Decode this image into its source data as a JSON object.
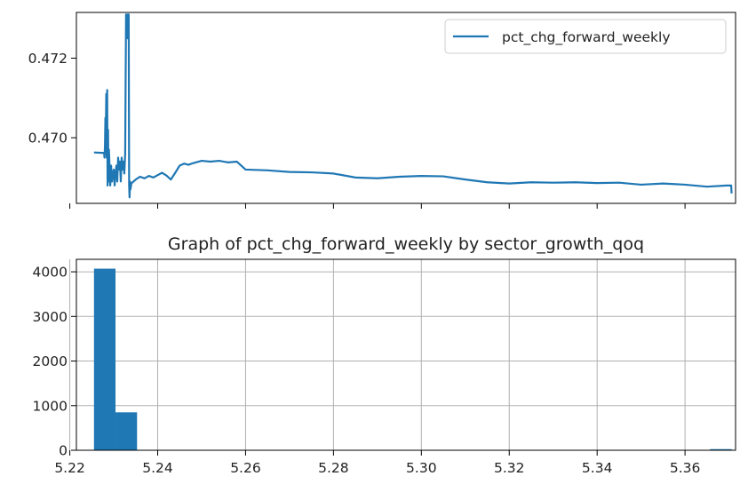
{
  "chart_data": [
    {
      "type": "line",
      "title": "",
      "xlabel": "",
      "ylabel": "",
      "x_tick_labels_shown": false,
      "x_range": [
        5.2215,
        5.3715
      ],
      "ylim": [
        0.46835,
        0.47315
      ],
      "y_ticks": [
        0.47,
        0.472
      ],
      "y_tick_labels": [
        "0.470",
        "0.472"
      ],
      "grid": false,
      "legend": {
        "placement": "upper right",
        "entries": [
          "pct_chg_forward_weekly"
        ]
      },
      "series": [
        {
          "name": "pct_chg_forward_weekly",
          "color": "#1f77b4",
          "x": [
            5.2255,
            5.2274,
            5.2278,
            5.2279,
            5.228,
            5.2281,
            5.2282,
            5.2283,
            5.2284,
            5.2285,
            5.2286,
            5.2287,
            5.2288,
            5.2289,
            5.229,
            5.2291,
            5.2292,
            5.2294,
            5.2296,
            5.2298,
            5.23,
            5.2302,
            5.2304,
            5.2306,
            5.2308,
            5.231,
            5.2312,
            5.2314,
            5.2316,
            5.2318,
            5.232,
            5.2322,
            5.2324,
            5.2326,
            5.2328,
            5.233,
            5.2331,
            5.2332,
            5.2333,
            5.2334,
            5.2335,
            5.2336,
            5.2337,
            5.2338,
            5.234,
            5.2345,
            5.235,
            5.236,
            5.237,
            5.238,
            5.239,
            5.24,
            5.241,
            5.242,
            5.243,
            5.244,
            5.245,
            5.246,
            5.247,
            5.248,
            5.25,
            5.252,
            5.254,
            5.256,
            5.258,
            5.26,
            5.265,
            5.27,
            5.275,
            5.28,
            5.285,
            5.29,
            5.295,
            5.3,
            5.305,
            5.31,
            5.315,
            5.32,
            5.325,
            5.33,
            5.335,
            5.34,
            5.345,
            5.35,
            5.355,
            5.36,
            5.365,
            5.3695,
            5.3705,
            5.3706
          ],
          "y": [
            0.46963,
            0.46962,
            0.46962,
            0.4695,
            0.4698,
            0.4705,
            0.4701,
            0.4711,
            0.4695,
            0.4712,
            0.4688,
            0.4702,
            0.4689,
            0.4697,
            0.4694,
            0.4691,
            0.4688,
            0.4693,
            0.4689,
            0.4691,
            0.4692,
            0.4688,
            0.4691,
            0.4693,
            0.4689,
            0.4695,
            0.4692,
            0.4694,
            0.4689,
            0.4695,
            0.4692,
            0.4694,
            0.4691,
            0.4696,
            0.4731,
            0.4729,
            0.4725,
            0.4731,
            0.4728,
            0.4731,
            0.4688,
            0.4685,
            0.4689,
            0.4687,
            0.46885,
            0.4689,
            0.46895,
            0.46902,
            0.46898,
            0.46904,
            0.469,
            0.46906,
            0.46912,
            0.46905,
            0.46895,
            0.46912,
            0.4693,
            0.46935,
            0.46932,
            0.46936,
            0.46942,
            0.4694,
            0.46942,
            0.46938,
            0.4694,
            0.4692,
            0.46918,
            0.46914,
            0.46913,
            0.4691,
            0.469,
            0.46898,
            0.46902,
            0.46904,
            0.46903,
            0.46895,
            0.46888,
            0.46885,
            0.46888,
            0.46887,
            0.46888,
            0.46886,
            0.46887,
            0.46882,
            0.46885,
            0.46882,
            0.46877,
            0.4688,
            0.4688,
            0.4686
          ]
        }
      ]
    },
    {
      "type": "bar",
      "subtype": "histogram",
      "title": "Graph of pct_chg_forward_weekly by sector_growth_qoq",
      "xlabel": "",
      "ylabel": "",
      "xlim": [
        5.2215,
        5.3715
      ],
      "ylim": [
        0,
        4280
      ],
      "x_ticks": [
        5.22,
        5.24,
        5.26,
        5.28,
        5.3,
        5.32,
        5.34,
        5.36
      ],
      "x_tick_labels": [
        "5.22",
        "5.24",
        "5.26",
        "5.28",
        "5.30",
        "5.32",
        "5.34",
        "5.36"
      ],
      "y_ticks": [
        0,
        1000,
        2000,
        3000,
        4000
      ],
      "y_tick_labels": [
        "0",
        "1000",
        "2000",
        "3000",
        "4000"
      ],
      "grid": true,
      "color": "#1f77b4",
      "bin_edges": [
        5.2255,
        5.2304,
        5.2353
      ],
      "values": [
        4070,
        850
      ],
      "extra_bins": [
        {
          "from": 5.3657,
          "to": 5.3706,
          "value": 25
        }
      ]
    }
  ]
}
